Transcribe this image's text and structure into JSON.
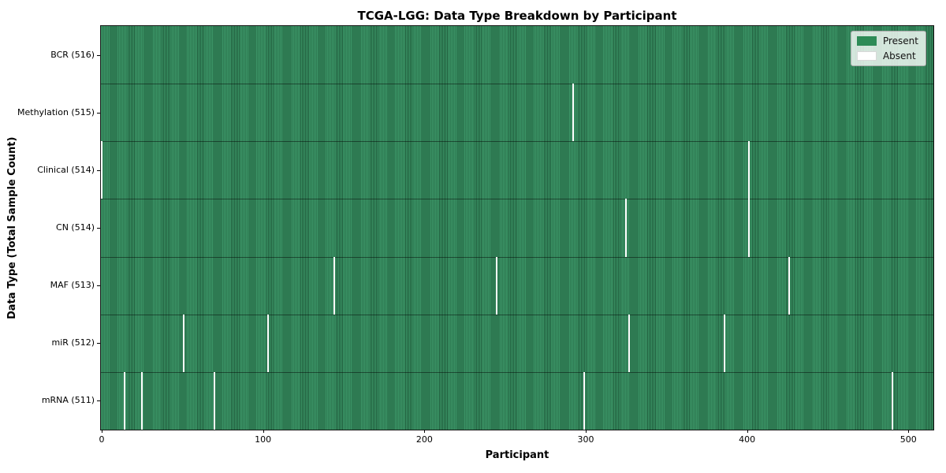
{
  "chart_data": {
    "type": "heatmap",
    "title": "TCGA-LGG: Data Type Breakdown by Participant",
    "xlabel": "Participant",
    "ylabel": "Data Type (Total Sample Count)",
    "x_ticks": [
      0,
      100,
      200,
      300,
      400,
      500
    ],
    "xlim": [
      -0.5,
      515.5
    ],
    "n_participants": 516,
    "grid": false,
    "present_color": "#2e8b57",
    "absent_color": "#ffffff",
    "bar_fill": "#3b9466",
    "bar_edge": "#215f3e",
    "legend": {
      "position": "upper-right",
      "items": [
        {
          "label": "Present",
          "color": "#2e8b57"
        },
        {
          "label": "Absent",
          "color": "#ffffff"
        }
      ]
    },
    "rows": [
      {
        "label": "BCR (516)",
        "data_type": "BCR",
        "total_samples": 516,
        "absent_participants": []
      },
      {
        "label": "Methylation (515)",
        "data_type": "Methylation",
        "total_samples": 515,
        "absent_participants": [
          292
        ]
      },
      {
        "label": "Clinical (514)",
        "data_type": "Clinical",
        "total_samples": 514,
        "absent_participants": [
          0,
          401
        ]
      },
      {
        "label": "CN (514)",
        "data_type": "CN",
        "total_samples": 514,
        "absent_participants": [
          325,
          401
        ]
      },
      {
        "label": "MAF (513)",
        "data_type": "MAF",
        "total_samples": 513,
        "absent_participants": [
          144,
          245,
          426
        ]
      },
      {
        "label": "miR (512)",
        "data_type": "miR",
        "total_samples": 512,
        "absent_participants": [
          51,
          103,
          327,
          386
        ]
      },
      {
        "label": "mRNA (511)",
        "data_type": "mRNA",
        "total_samples": 511,
        "absent_participants": [
          14,
          25,
          70,
          299,
          490
        ]
      }
    ]
  }
}
